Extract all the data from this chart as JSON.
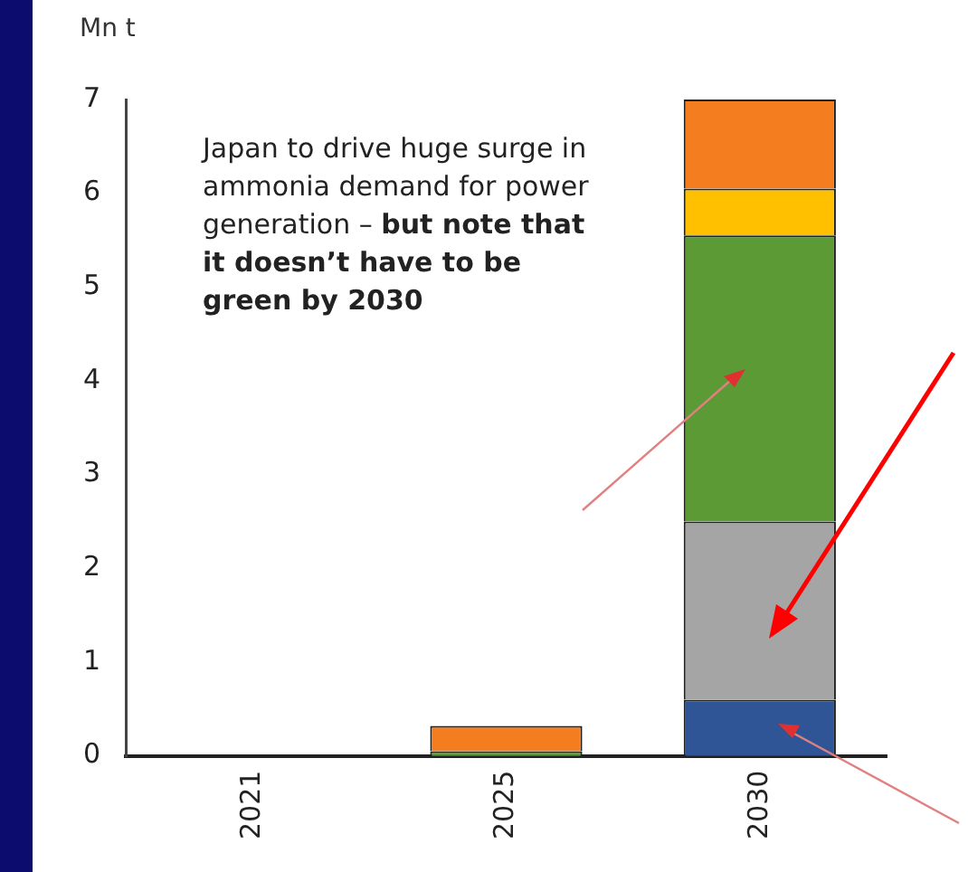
{
  "chart_data": {
    "type": "bar",
    "stacked": true,
    "ylabel": "Mn t",
    "categories": [
      "2021",
      "2025",
      "2030"
    ],
    "series": [
      {
        "color": "#2f5597",
        "values": [
          0,
          null,
          0.6
        ]
      },
      {
        "color": "#a5a5a5",
        "values": [
          0,
          0,
          1.9
        ]
      },
      {
        "color": "#5b9a35",
        "values": [
          0,
          0.05,
          3.05
        ]
      },
      {
        "color": "#ffc000",
        "values": [
          0,
          0,
          0.5
        ]
      },
      {
        "color": "#f47d20",
        "values": [
          0,
          0.27,
          0.95
        ]
      }
    ],
    "ylim": [
      0,
      7
    ],
    "yticks": [
      0,
      1,
      2,
      3,
      4,
      5,
      6,
      7
    ],
    "grid": false,
    "legend": false,
    "annotations": [
      "Japan to drive huge surge in ammonia demand for power generation – ",
      "but note that it doesn’t have to be green by 2030"
    ]
  }
}
